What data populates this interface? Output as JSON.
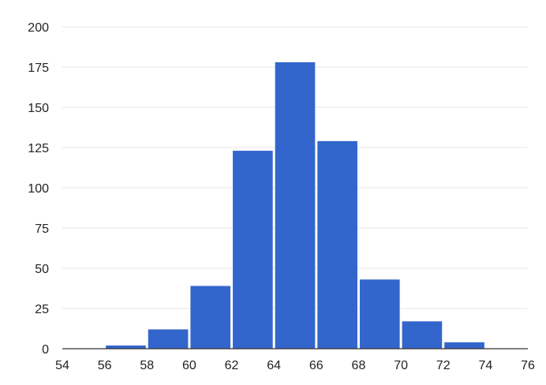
{
  "chart_data": {
    "type": "bar",
    "subtype": "histogram",
    "title": "",
    "xlabel": "",
    "ylabel": "",
    "bins": [
      {
        "x0": 56,
        "x1": 58,
        "value": 2
      },
      {
        "x0": 58,
        "x1": 60,
        "value": 12
      },
      {
        "x0": 60,
        "x1": 62,
        "value": 39
      },
      {
        "x0": 62,
        "x1": 64,
        "value": 123
      },
      {
        "x0": 64,
        "x1": 66,
        "value": 178
      },
      {
        "x0": 66,
        "x1": 68,
        "value": 129
      },
      {
        "x0": 68,
        "x1": 70,
        "value": 43
      },
      {
        "x0": 70,
        "x1": 72,
        "value": 17
      },
      {
        "x0": 72,
        "x1": 74,
        "value": 4
      }
    ],
    "xlim": [
      54,
      76
    ],
    "ylim": [
      0,
      200
    ],
    "xticks": [
      "54",
      "56",
      "58",
      "60",
      "62",
      "64",
      "66",
      "68",
      "70",
      "72",
      "74",
      "76"
    ],
    "yticks": [
      "0",
      "25",
      "50",
      "75",
      "100",
      "125",
      "150",
      "175",
      "200"
    ],
    "grid": true,
    "legend": "none",
    "colors": {
      "bar": "#3366cc",
      "grid": "#e6e6e6",
      "baseline": "#333333",
      "text": "#222222"
    }
  }
}
